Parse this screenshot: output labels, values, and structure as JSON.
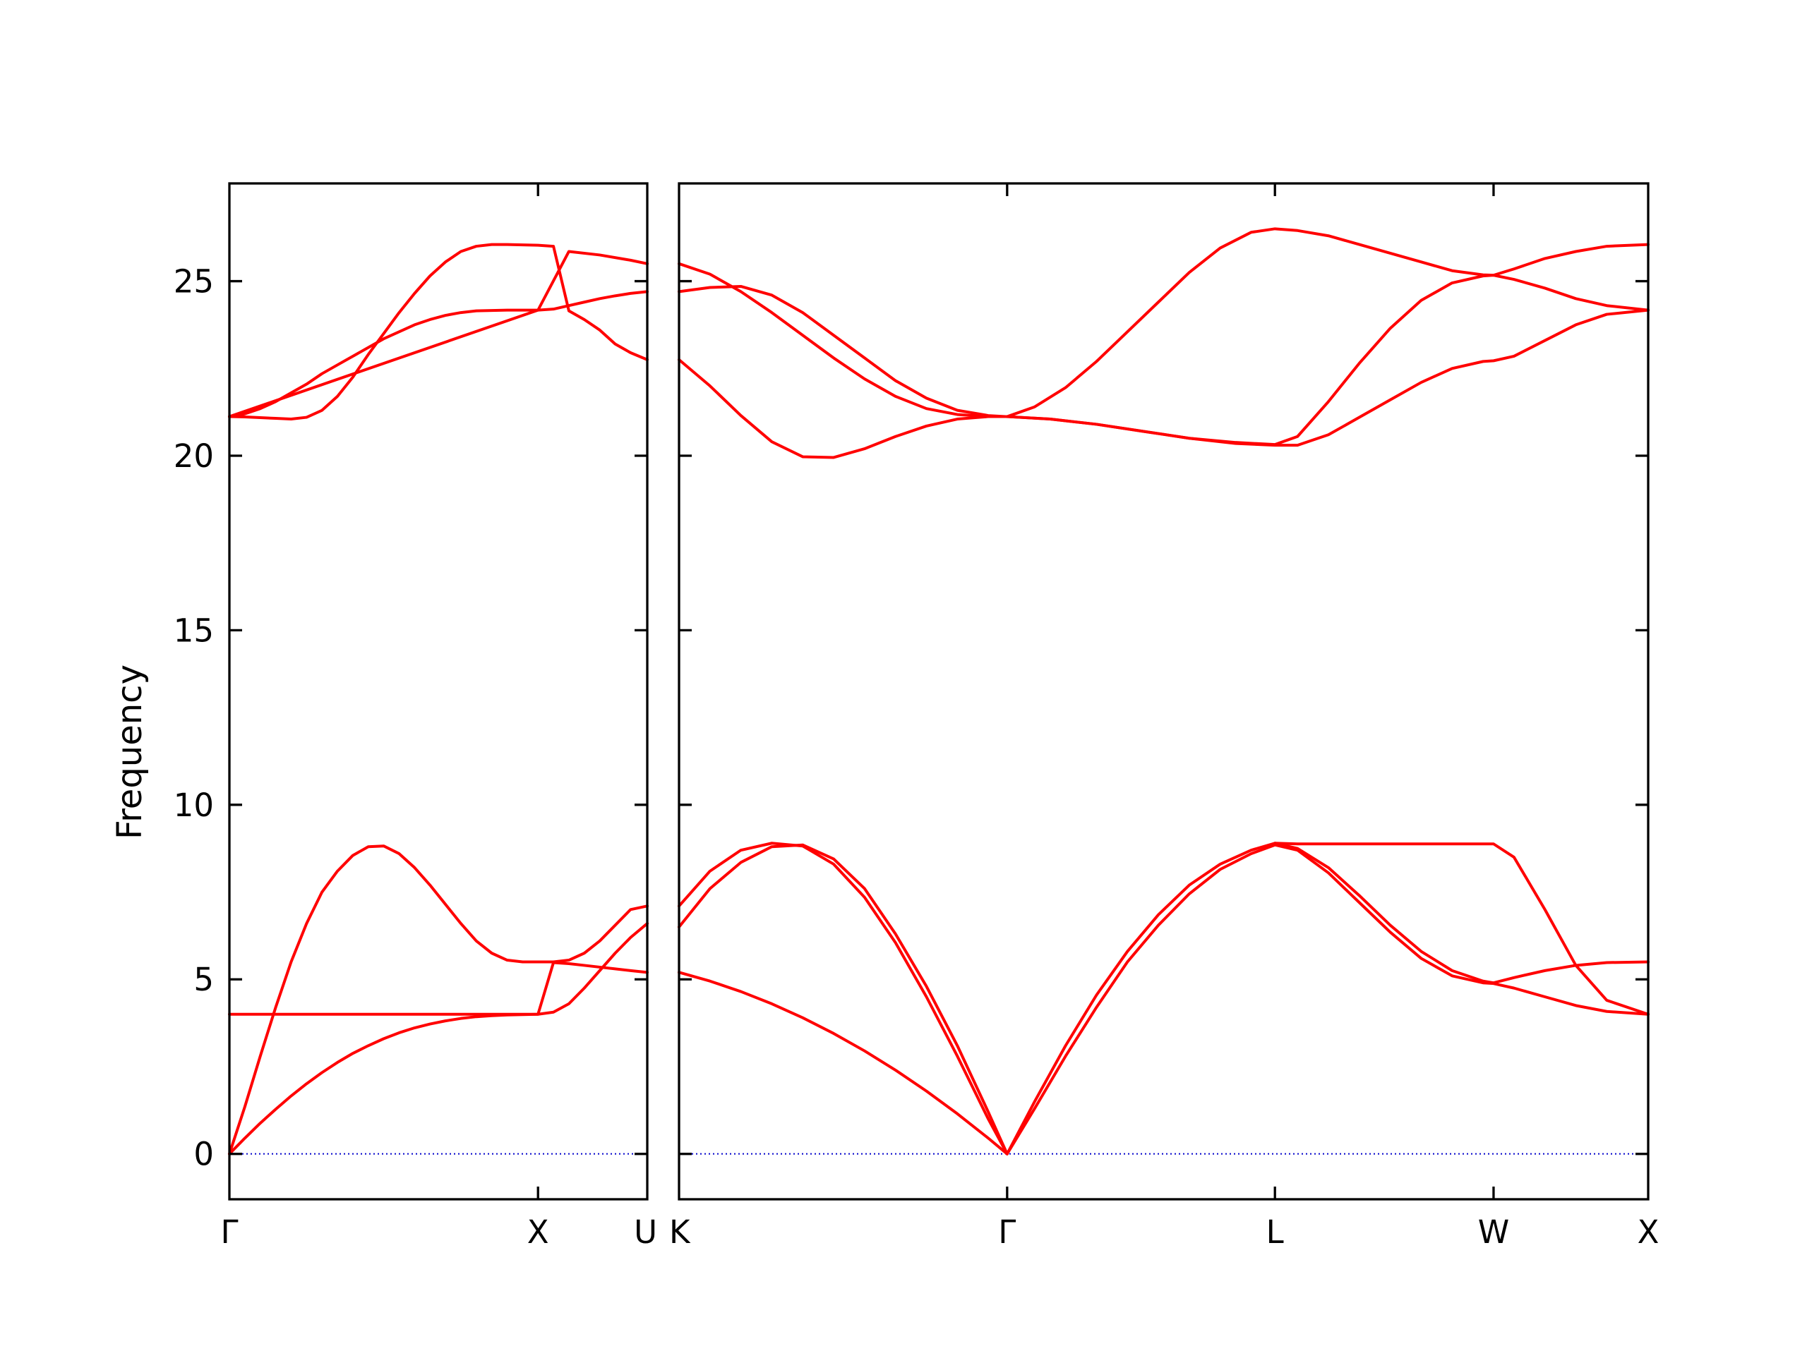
{
  "chart_data": {
    "type": "line",
    "ylabel": "Frequency",
    "ylim": [
      -1.3,
      27.8
    ],
    "yticks": [
      0,
      5,
      10,
      15,
      20,
      25
    ],
    "grid": false,
    "legend": "none",
    "colors": {
      "bands": "#ff0000",
      "zero_line": "#0000cc",
      "axes": "#000000"
    },
    "panels": [
      {
        "name": "Γ-X-U",
        "path_ticks": [
          {
            "label": "Γ",
            "x": 0.0
          },
          {
            "label": "X",
            "x": 1.0
          },
          {
            "label": "U",
            "x": 1.354
          }
        ],
        "series": [
          {
            "x": [
              0,
              0.05,
              0.1,
              0.15,
              0.2,
              0.25,
              0.3,
              0.35,
              0.4,
              0.45,
              0.5,
              0.55,
              0.6,
              0.65,
              0.7,
              0.75,
              0.8,
              0.85,
              0.9,
              0.95,
              1.0,
              1.05,
              1.1,
              1.15,
              1.2,
              1.25,
              1.3,
              1.354
            ],
            "y": [
              0,
              0.45,
              0.88,
              1.28,
              1.66,
              2.01,
              2.33,
              2.62,
              2.88,
              3.1,
              3.3,
              3.47,
              3.61,
              3.72,
              3.81,
              3.88,
              3.93,
              3.96,
              3.98,
              3.99,
              4.0,
              4.06,
              4.3,
              4.75,
              5.25,
              5.75,
              6.2,
              6.6
            ]
          },
          {
            "x": [
              0,
              0.05,
              0.1,
              0.15,
              0.2,
              0.25,
              0.3,
              0.35,
              0.4,
              0.45,
              0.5,
              0.55,
              0.6,
              0.65,
              0.7,
              0.75,
              0.8,
              0.85,
              0.9,
              0.95,
              1.0,
              1.05,
              1.1,
              1.15,
              1.2,
              1.25,
              1.3,
              1.354
            ],
            "y": [
              0,
              1.35,
              2.8,
              4.2,
              5.5,
              6.6,
              7.5,
              8.1,
              8.55,
              8.8,
              8.82,
              8.6,
              8.2,
              7.7,
              7.15,
              6.6,
              6.1,
              5.75,
              5.55,
              5.5,
              5.5,
              5.5,
              5.55,
              5.75,
              6.1,
              6.55,
              7.0,
              7.1
            ]
          },
          {
            "x": [
              0,
              0.05,
              0.1,
              0.15,
              0.2,
              0.25,
              0.3,
              0.35,
              0.4,
              0.45,
              0.5,
              0.55,
              0.6,
              0.65,
              0.7,
              0.75,
              0.8,
              0.85,
              0.9,
              0.95,
              1.0,
              1.05,
              1.1,
              1.15,
              1.2,
              1.25,
              1.3,
              1.354
            ],
            "y": [
              21.12,
              21.11,
              21.09,
              21.07,
              21.05,
              21.1,
              21.3,
              21.7,
              22.25,
              22.9,
              23.5,
              24.1,
              24.65,
              25.15,
              25.55,
              25.85,
              26.0,
              26.05,
              26.05,
              26.04,
              26.03,
              26.0,
              24.15,
              23.9,
              23.6,
              23.2,
              22.95,
              22.75
            ]
          },
          {
            "x": [
              0,
              0.05,
              0.1,
              0.15,
              0.2,
              0.25,
              0.3,
              0.35,
              0.4,
              0.45,
              0.5,
              0.55,
              0.6,
              0.65,
              0.7,
              0.75,
              0.8,
              0.85,
              0.9,
              0.95,
              1.0,
              1.05,
              1.1,
              1.15,
              1.2,
              1.25,
              1.3,
              1.354
            ],
            "y": [
              21.12,
              21.2,
              21.35,
              21.55,
              21.8,
              22.05,
              22.35,
              22.6,
              22.85,
              23.1,
              23.35,
              23.55,
              23.75,
              23.9,
              24.02,
              24.1,
              24.15,
              24.16,
              24.17,
              24.17,
              24.17,
              24.2,
              24.3,
              24.4,
              24.5,
              24.58,
              24.65,
              24.7
            ]
          },
          {
            "x": [
              0,
              1.0,
              1.1,
              1.2,
              1.3,
              1.354
            ],
            "y": [
              21.12,
              24.17,
              25.85,
              25.75,
              25.6,
              25.5
            ]
          },
          {
            "x": [
              0,
              1.0,
              1.05,
              1.1,
              1.15,
              1.2,
              1.25,
              1.3,
              1.354
            ],
            "y": [
              4.0,
              4.0,
              5.48,
              5.45,
              5.4,
              5.35,
              5.3,
              5.25,
              5.2
            ]
          }
        ]
      },
      {
        "name": "K-Γ-L-W-X",
        "path_ticks": [
          {
            "label": "K",
            "x": 0.0
          },
          {
            "label": "Γ",
            "x": 1.061
          },
          {
            "label": "L",
            "x": 1.927
          },
          {
            "label": "W",
            "x": 2.634
          },
          {
            "label": "X",
            "x": 3.134
          }
        ],
        "series": [
          {
            "x": [
              0,
              0.1,
              0.2,
              0.3,
              0.4,
              0.5,
              0.6,
              0.7,
              0.8,
              0.9,
              1.0,
              1.061
            ],
            "y": [
              5.2,
              4.95,
              4.65,
              4.3,
              3.9,
              3.45,
              2.95,
              2.4,
              1.8,
              1.15,
              0.45,
              0
            ]
          },
          {
            "x": [
              0,
              0.1,
              0.2,
              0.3,
              0.4,
              0.5,
              0.6,
              0.7,
              0.8,
              0.9,
              1.0,
              1.061
            ],
            "y": [
              6.5,
              7.6,
              8.35,
              8.8,
              8.85,
              8.45,
              7.6,
              6.3,
              4.8,
              3.1,
              1.2,
              0
            ]
          },
          {
            "x": [
              0,
              0.1,
              0.2,
              0.3,
              0.4,
              0.5,
              0.6,
              0.7,
              0.8,
              0.9,
              1.0,
              1.061
            ],
            "y": [
              7.1,
              8.1,
              8.7,
              8.9,
              8.82,
              8.3,
              7.35,
              6.05,
              4.5,
              2.8,
              1.0,
              0
            ]
          },
          {
            "x": [
              1.061,
              1.15,
              1.25,
              1.35,
              1.45,
              1.55,
              1.65,
              1.75,
              1.85,
              1.927,
              2.0,
              2.1,
              2.2,
              2.3,
              2.4,
              2.5,
              2.6,
              2.634,
              2.7,
              2.8,
              2.9,
              3.0,
              3.134
            ],
            "y": [
              0,
              1.5,
              3.1,
              4.55,
              5.8,
              6.85,
              7.7,
              8.3,
              8.7,
              8.9,
              8.75,
              8.2,
              7.4,
              6.55,
              5.8,
              5.25,
              4.95,
              4.9,
              5.05,
              5.25,
              5.4,
              5.48,
              5.5
            ]
          },
          {
            "x": [
              1.061,
              1.15,
              1.25,
              1.35,
              1.45,
              1.55,
              1.65,
              1.75,
              1.85,
              1.927,
              2.0,
              2.1,
              2.2,
              2.3,
              2.4,
              2.5,
              2.6,
              2.634,
              2.7,
              2.8,
              2.9,
              3.0,
              3.134
            ],
            "y": [
              0,
              1.3,
              2.8,
              4.2,
              5.5,
              6.55,
              7.45,
              8.15,
              8.6,
              8.85,
              8.7,
              8.05,
              7.2,
              6.35,
              5.6,
              5.1,
              4.9,
              4.88,
              4.75,
              4.5,
              4.25,
              4.08,
              4.0
            ]
          },
          {
            "x": [
              1.927,
              2.0,
              2.1,
              2.2,
              2.3,
              2.4,
              2.5,
              2.6,
              2.634,
              2.7,
              2.8,
              2.9,
              3.0,
              3.134
            ],
            "y": [
              8.9,
              8.88,
              8.88,
              8.88,
              8.88,
              8.88,
              8.88,
              8.88,
              8.88,
              8.5,
              7.0,
              5.4,
              4.4,
              4.0
            ]
          },
          {
            "x": [
              0,
              0.1,
              0.2,
              0.3,
              0.4,
              0.5,
              0.6,
              0.7,
              0.8,
              0.9,
              1.0,
              1.061
            ],
            "y": [
              22.75,
              22.0,
              21.15,
              20.4,
              19.97,
              19.95,
              20.2,
              20.55,
              20.85,
              21.05,
              21.12,
              21.12
            ]
          },
          {
            "x": [
              0,
              0.1,
              0.2,
              0.3,
              0.4,
              0.5,
              0.6,
              0.7,
              0.8,
              0.9,
              1.0,
              1.061
            ],
            "y": [
              24.7,
              24.82,
              24.85,
              24.6,
              24.1,
              23.45,
              22.8,
              22.15,
              21.65,
              21.3,
              21.15,
              21.12
            ]
          },
          {
            "x": [
              0,
              0.1,
              0.2,
              0.3,
              0.4,
              0.5,
              0.6,
              0.7,
              0.8,
              0.9,
              1.0,
              1.061
            ],
            "y": [
              25.5,
              25.2,
              24.7,
              24.1,
              23.45,
              22.8,
              22.2,
              21.7,
              21.35,
              21.18,
              21.12,
              21.12
            ]
          },
          {
            "x": [
              1.061,
              1.2,
              1.35,
              1.5,
              1.65,
              1.8,
              1.927,
              2.0,
              2.1,
              2.2,
              2.3,
              2.4,
              2.5,
              2.6,
              2.634,
              2.7,
              2.8,
              2.9,
              3.0,
              3.134
            ],
            "y": [
              21.12,
              21.05,
              20.9,
              20.7,
              20.5,
              20.35,
              20.3,
              20.3,
              20.6,
              21.1,
              21.6,
              22.1,
              22.5,
              22.7,
              22.72,
              22.85,
              23.3,
              23.75,
              24.05,
              24.17
            ]
          },
          {
            "x": [
              1.061,
              1.2,
              1.35,
              1.5,
              1.65,
              1.8,
              1.927,
              2.0,
              2.1,
              2.2,
              2.3,
              2.4,
              2.5,
              2.6,
              2.634,
              2.7,
              2.8,
              2.9,
              3.0,
              3.134
            ],
            "y": [
              21.12,
              21.05,
              20.9,
              20.7,
              20.5,
              20.38,
              20.32,
              20.55,
              21.55,
              22.65,
              23.65,
              24.45,
              24.95,
              25.15,
              25.17,
              25.05,
              24.8,
              24.5,
              24.3,
              24.17
            ]
          },
          {
            "x": [
              1.061,
              1.15,
              1.25,
              1.35,
              1.45,
              1.55,
              1.65,
              1.75,
              1.85,
              1.927,
              2.0,
              2.1,
              2.2,
              2.3,
              2.4,
              2.5,
              2.6,
              2.634,
              2.7,
              2.8,
              2.9,
              3.0,
              3.134
            ],
            "y": [
              21.12,
              21.4,
              21.95,
              22.7,
              23.55,
              24.4,
              25.25,
              25.95,
              26.4,
              26.5,
              26.45,
              26.3,
              26.05,
              25.8,
              25.55,
              25.3,
              25.18,
              25.17,
              25.35,
              25.65,
              25.85,
              26.0,
              26.05
            ]
          }
        ]
      }
    ]
  }
}
